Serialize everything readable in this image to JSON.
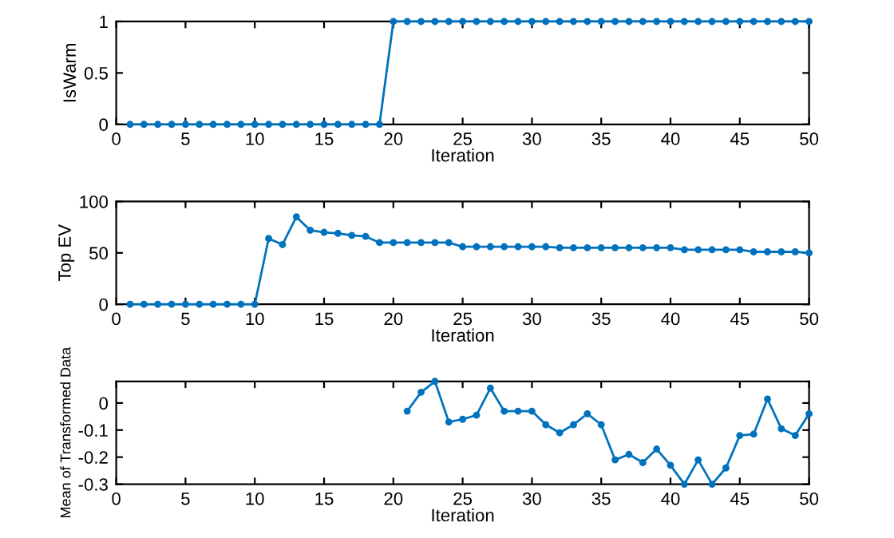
{
  "chart_data": [
    {
      "type": "line",
      "xlabel": "Iteration",
      "ylabel": "IsWarm",
      "x": [
        1,
        2,
        3,
        4,
        5,
        6,
        7,
        8,
        9,
        10,
        11,
        12,
        13,
        14,
        15,
        16,
        17,
        18,
        19,
        20,
        21,
        22,
        23,
        24,
        25,
        26,
        27,
        28,
        29,
        30,
        31,
        32,
        33,
        34,
        35,
        36,
        37,
        38,
        39,
        40,
        41,
        42,
        43,
        44,
        45,
        46,
        47,
        48,
        49,
        50
      ],
      "series": [
        {
          "color": "#0072bd",
          "values": [
            0,
            0,
            0,
            0,
            0,
            0,
            0,
            0,
            0,
            0,
            0,
            0,
            0,
            0,
            0,
            0,
            0,
            0,
            0,
            1,
            1,
            1,
            1,
            1,
            1,
            1,
            1,
            1,
            1,
            1,
            1,
            1,
            1,
            1,
            1,
            1,
            1,
            1,
            1,
            1,
            1,
            1,
            1,
            1,
            1,
            1,
            1,
            1,
            1,
            1
          ]
        }
      ],
      "xlim": [
        0,
        50
      ],
      "xticks": [
        0,
        5,
        10,
        15,
        20,
        25,
        30,
        35,
        40,
        45,
        50
      ],
      "ylim": [
        0,
        1
      ],
      "yticks": [
        0,
        0.5,
        1
      ],
      "marker": "circle"
    },
    {
      "type": "line",
      "xlabel": "Iteration",
      "ylabel": "Top EV",
      "x": [
        1,
        2,
        3,
        4,
        5,
        6,
        7,
        8,
        9,
        10,
        11,
        12,
        13,
        14,
        15,
        16,
        17,
        18,
        19,
        20,
        21,
        22,
        23,
        24,
        25,
        26,
        27,
        28,
        29,
        30,
        31,
        32,
        33,
        34,
        35,
        36,
        37,
        38,
        39,
        40,
        41,
        42,
        43,
        44,
        45,
        46,
        47,
        48,
        49,
        50
      ],
      "series": [
        {
          "color": "#0072bd",
          "values": [
            0,
            0,
            0,
            0,
            0,
            0,
            0,
            0,
            0,
            0,
            64,
            58,
            85,
            72,
            70,
            69,
            67,
            66,
            60,
            60,
            60,
            60,
            60,
            60,
            56,
            56,
            56,
            56,
            56,
            56,
            56,
            55,
            55,
            55,
            55,
            55,
            55,
            55,
            55,
            55,
            53,
            53,
            53,
            53,
            53,
            51,
            51,
            51,
            51,
            50
          ]
        }
      ],
      "xlim": [
        0,
        50
      ],
      "xticks": [
        0,
        5,
        10,
        15,
        20,
        25,
        30,
        35,
        40,
        45,
        50
      ],
      "ylim": [
        0,
        100
      ],
      "yticks": [
        0,
        50,
        100
      ],
      "marker": "circle"
    },
    {
      "type": "line",
      "xlabel": "Iteration",
      "ylabel": "Mean of Transformed Data",
      "series": [
        {
          "color": "#0072bd",
          "x": [
            21,
            22,
            23,
            24,
            25,
            26,
            27,
            28,
            29,
            30,
            31,
            32,
            33,
            34,
            35,
            36,
            37,
            38,
            39,
            40,
            41,
            42,
            43,
            44,
            45,
            46,
            47,
            48,
            49,
            50
          ],
          "values": [
            -0.03,
            0.04,
            0.08,
            -0.07,
            -0.06,
            -0.045,
            0.055,
            -0.03,
            -0.03,
            -0.03,
            -0.08,
            -0.11,
            -0.08,
            -0.04,
            -0.08,
            -0.21,
            -0.19,
            -0.22,
            -0.17,
            -0.23,
            -0.3,
            -0.21,
            -0.3,
            -0.24,
            -0.12,
            -0.115,
            0.015,
            -0.095,
            -0.12,
            -0.04
          ]
        }
      ],
      "xlim": [
        0,
        50
      ],
      "xticks": [
        0,
        5,
        10,
        15,
        20,
        25,
        30,
        35,
        40,
        45,
        50
      ],
      "ylim": [
        -0.3,
        0.08
      ],
      "yticks": [
        {
          "value": -0.3,
          "label": "-0.3"
        },
        {
          "value": -0.2,
          "label": "-0.2"
        },
        {
          "value": -0.1,
          "label": "-0.1"
        },
        0
      ],
      "marker": "circle"
    }
  ]
}
